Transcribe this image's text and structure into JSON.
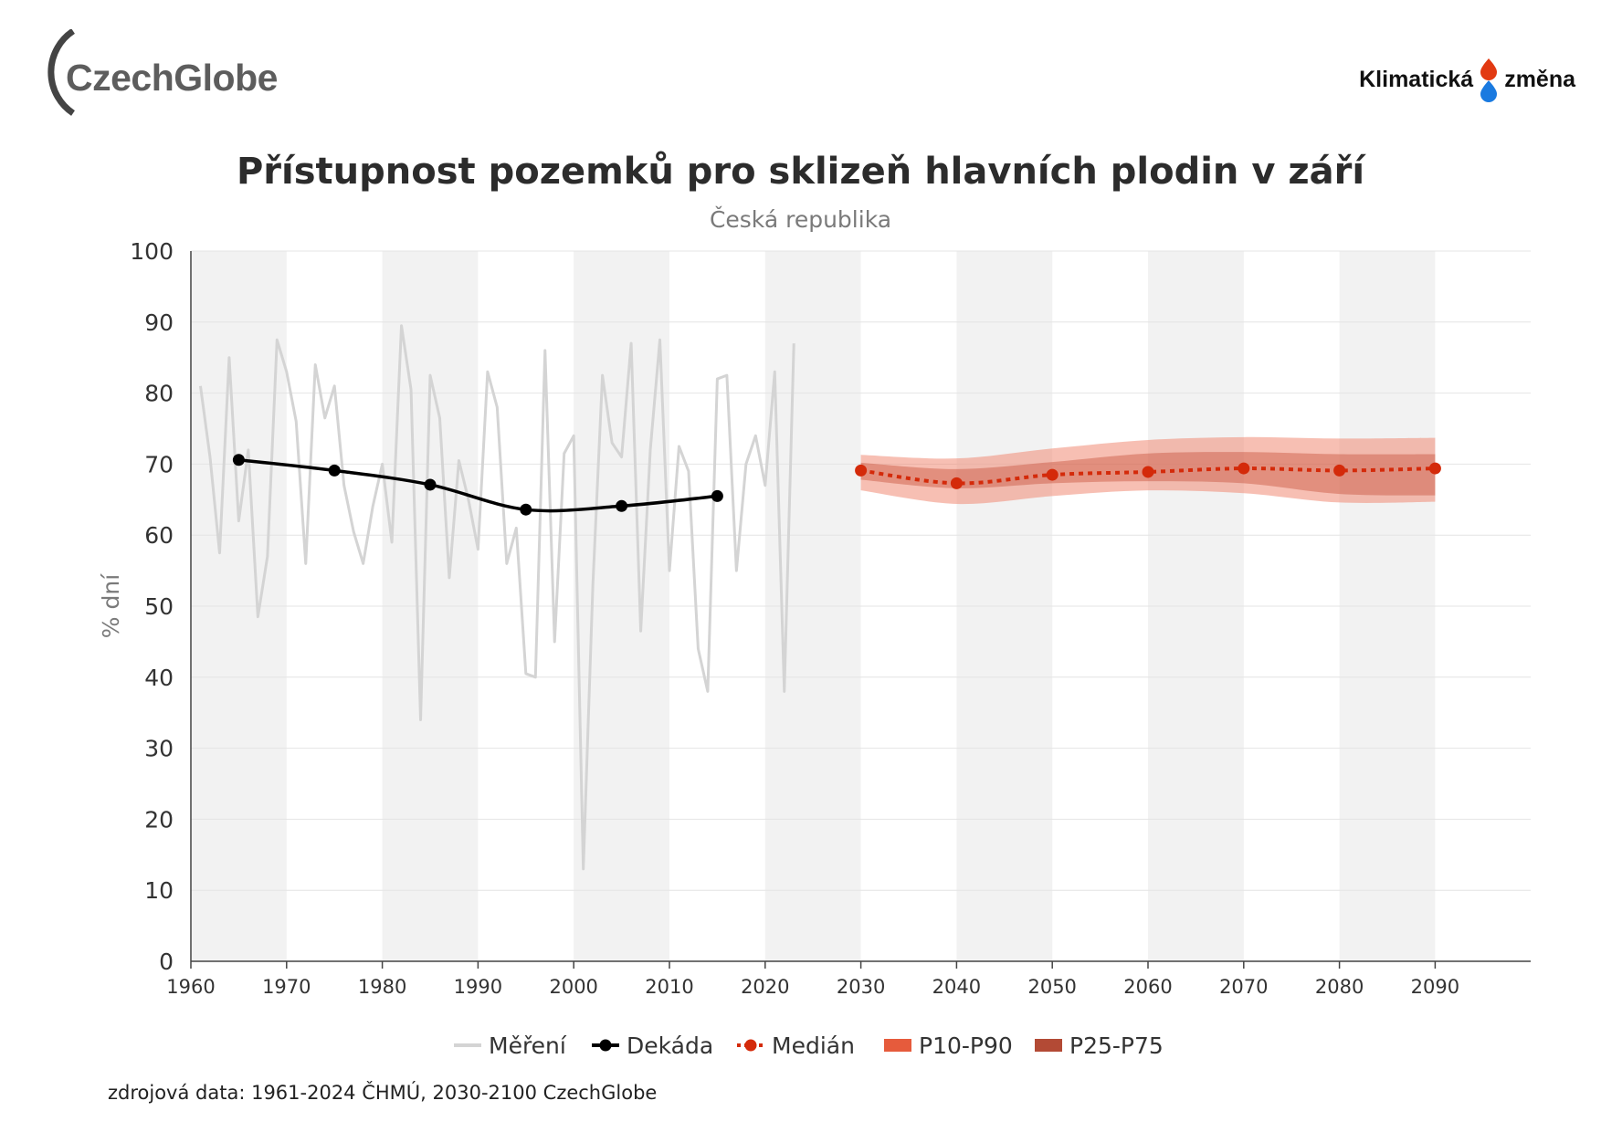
{
  "logos": {
    "left": {
      "part1": "Czech",
      "part2": "Globe"
    },
    "right": {
      "part1": "Klimatická",
      "part2": "změna"
    }
  },
  "colors": {
    "band_bg": "#f2f2f2",
    "measured": "#d4d4d4",
    "decade": "#000000",
    "median": "#d42a0a",
    "p10_p90": "#f08a74",
    "p25_p75": "#c8553d",
    "legend_p10_p90": "#e65b3c",
    "legend_p25_p75": "#b34a35"
  },
  "footer": {
    "source": "zdrojová data: 1961-2024 ČHMÚ, 2030-2100 CzechGlobe"
  },
  "chart_data": {
    "type": "line",
    "title": "Přístupnost pozemků pro sklizeň hlavních plodin v září",
    "subtitle": "Česká republika",
    "ylabel": "% dní",
    "xlabel": "",
    "xlim": [
      1960,
      2100
    ],
    "ylim": [
      0,
      100
    ],
    "xticks": [
      1960,
      1970,
      1980,
      1990,
      2000,
      2010,
      2020,
      2030,
      2040,
      2050,
      2060,
      2070,
      2080,
      2090
    ],
    "yticks": [
      0,
      10,
      20,
      30,
      40,
      50,
      60,
      70,
      80,
      90,
      100
    ],
    "grid": true,
    "legend_position": "bottom",
    "legend": [
      "Měření",
      "Dekáda",
      "Medián",
      "P10-P90",
      "P25-P75"
    ],
    "series": [
      {
        "name": "Měření",
        "x": [
          1961,
          1962,
          1963,
          1964,
          1965,
          1966,
          1967,
          1968,
          1969,
          1970,
          1971,
          1972,
          1973,
          1974,
          1975,
          1976,
          1977,
          1978,
          1979,
          1980,
          1981,
          1982,
          1983,
          1984,
          1985,
          1986,
          1987,
          1988,
          1989,
          1990,
          1991,
          1992,
          1993,
          1994,
          1995,
          1996,
          1997,
          1998,
          1999,
          2000,
          2001,
          2002,
          2003,
          2004,
          2005,
          2006,
          2007,
          2008,
          2009,
          2010,
          2011,
          2012,
          2013,
          2014,
          2015,
          2016,
          2017,
          2018,
          2019,
          2020,
          2021,
          2022,
          2023
        ],
        "values": [
          81,
          71,
          57.5,
          85,
          62,
          72,
          48.5,
          57,
          87.5,
          83,
          76,
          56,
          84,
          76.5,
          81,
          67,
          60.5,
          56,
          64,
          70,
          59,
          89.5,
          80.5,
          34,
          82.5,
          76.5,
          54,
          70.5,
          65,
          58,
          83,
          78,
          56,
          61,
          40.5,
          40,
          86,
          45,
          71.5,
          74,
          13,
          53,
          82.5,
          73,
          71,
          87,
          46.5,
          72,
          87.5,
          55,
          72.5,
          69,
          44,
          38,
          82,
          82.5,
          55,
          70,
          74,
          67,
          83,
          38,
          87
        ]
      },
      {
        "name": "Dekáda",
        "x": [
          1965,
          1975,
          1985,
          1995,
          2005,
          2015
        ],
        "values": [
          70.6,
          69.1,
          67.1,
          63.6,
          64.1,
          65.5
        ]
      },
      {
        "name": "Medián",
        "x": [
          2030,
          2040,
          2050,
          2060,
          2070,
          2080,
          2090
        ],
        "values": [
          69.1,
          67.3,
          68.5,
          68.9,
          69.4,
          69.1,
          69.4
        ]
      },
      {
        "name": "P10-P90",
        "x": [
          2030,
          2040,
          2050,
          2060,
          2070,
          2080,
          2090
        ],
        "low": [
          66.3,
          64.4,
          65.5,
          66.3,
          65.9,
          64.6,
          64.7
        ],
        "high": [
          71.3,
          70.8,
          72.2,
          73.4,
          73.8,
          73.6,
          73.7
        ]
      },
      {
        "name": "P25-P75",
        "x": [
          2030,
          2040,
          2050,
          2060,
          2070,
          2080,
          2090
        ],
        "low": [
          67.8,
          66.6,
          67.3,
          67.6,
          67.3,
          65.8,
          65.6
        ],
        "high": [
          70.2,
          69.3,
          70.3,
          71.5,
          71.7,
          71.4,
          71.4
        ]
      }
    ]
  }
}
